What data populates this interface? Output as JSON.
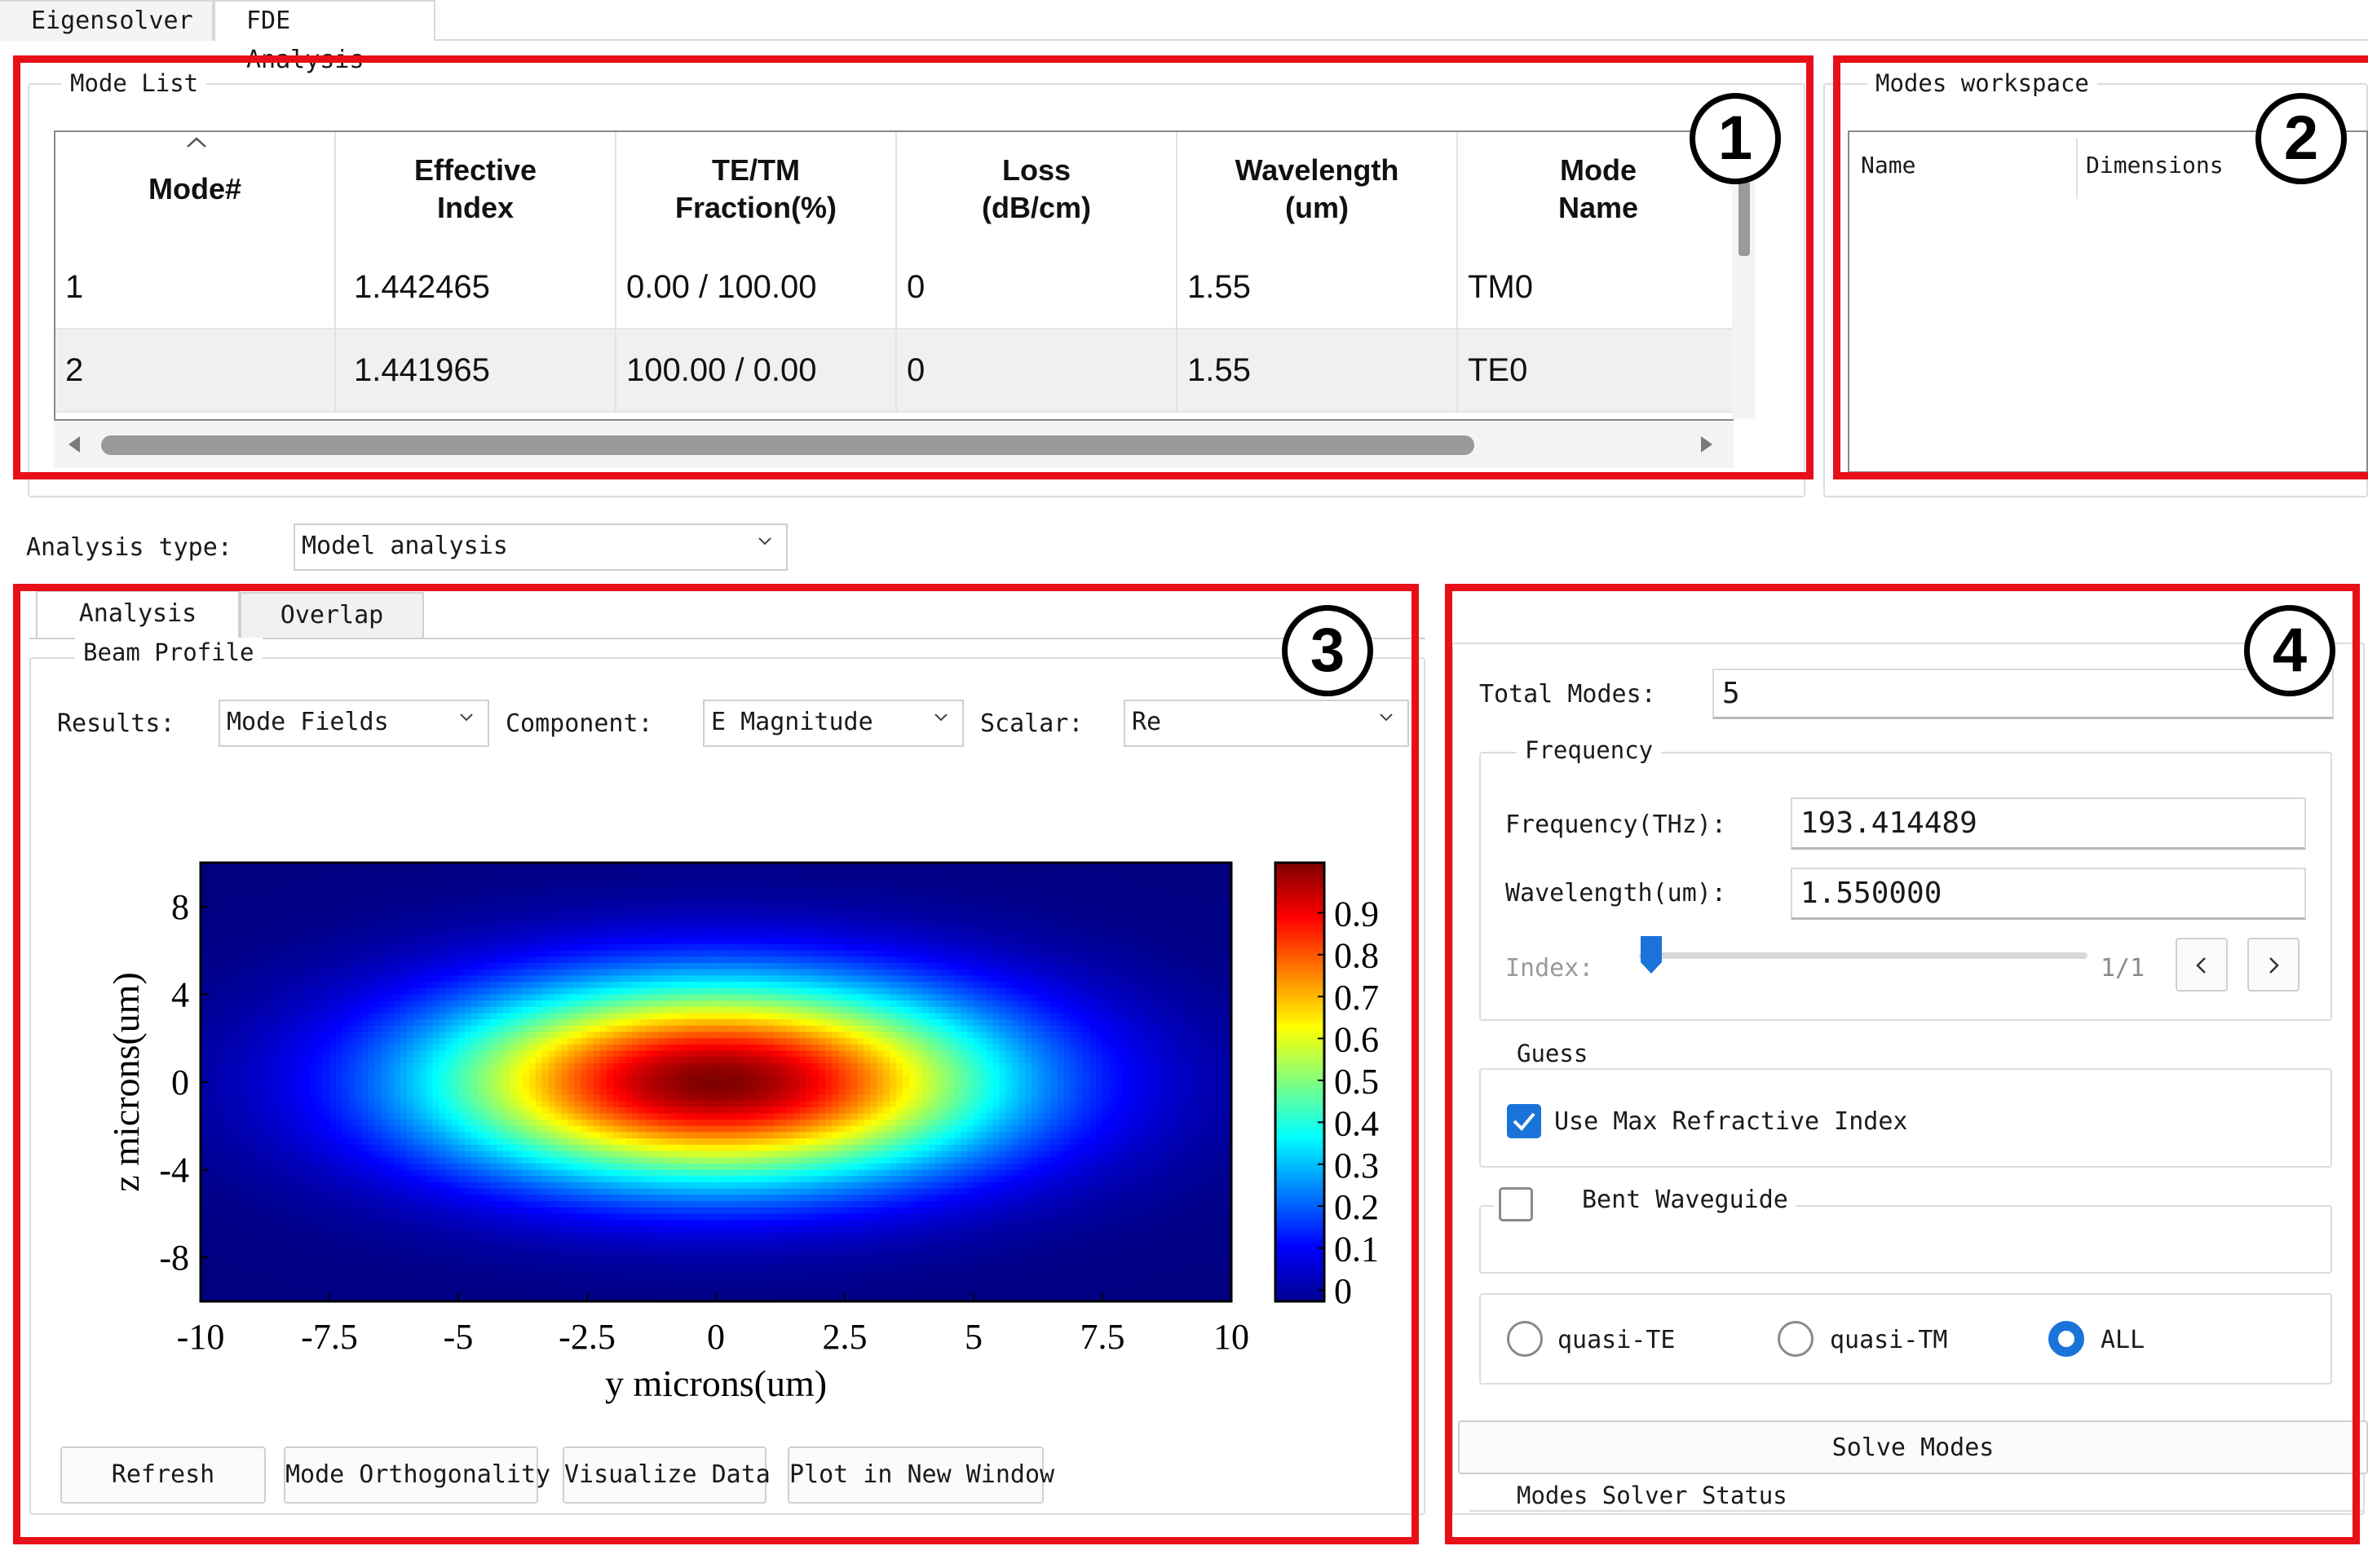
{
  "tabs": {
    "eigensolver": "Eigensolver",
    "fde_analysis": "FDE Analysis"
  },
  "mode_list": {
    "legend": "Mode List",
    "columns": [
      "Mode#",
      "Effective Index",
      "TE/TM Fraction(%)",
      "Loss (dB/cm)",
      "Wavelength (um)",
      "Mode Name"
    ],
    "rows": [
      {
        "mode": "1",
        "neff": "1.442465",
        "tetm": "0.00 / 100.00",
        "loss": "0",
        "wavelength": "1.55",
        "name": "TM0"
      },
      {
        "mode": "2",
        "neff": "1.441965",
        "tetm": "100.00 / 0.00",
        "loss": "0",
        "wavelength": "1.55",
        "name": "TE0"
      }
    ]
  },
  "workspace": {
    "legend": "Modes workspace",
    "col_name": "Name",
    "col_dims": "Dimensions"
  },
  "analysis_type": {
    "label": "Analysis type:",
    "value": "Model analysis"
  },
  "analysis_tabs": {
    "analysis": "Analysis",
    "overlap": "Overlap"
  },
  "beam_profile": {
    "legend": "Beam Profile",
    "results_label": "Results:",
    "results_value": "Mode Fields",
    "component_label": "Component:",
    "component_value": "E Magnitude",
    "scalar_label": "Scalar:",
    "scalar_value": "Re"
  },
  "chart_data": {
    "type": "heatmap",
    "title": "",
    "xlabel": "y microns(um)",
    "ylabel": "z microns(um)",
    "xlim": [
      -10,
      10
    ],
    "ylim": [
      -10,
      10
    ],
    "xticks": [
      "-10",
      "-7.5",
      "-5",
      "-2.5",
      "0",
      "2.5",
      "5",
      "7.5",
      "10"
    ],
    "yticks": [
      "8",
      "4",
      "0",
      "-4",
      "-8"
    ],
    "colorbar": {
      "min": 0,
      "max": 1,
      "ticks": [
        "0.9",
        "0.8",
        "0.7",
        "0.6",
        "0.5",
        "0.4",
        "0.3",
        "0.2",
        "0.1",
        "0"
      ],
      "colormap": "jet"
    },
    "field": {
      "shape": "gaussian-ellipse",
      "center": [
        0,
        0
      ],
      "peak": 1.0,
      "width_y_um": 5.5,
      "width_z_um": 4.5
    }
  },
  "buttons": {
    "refresh": "Refresh",
    "mode_orthogonality": "Mode Orthogonality",
    "visualize_data": "Visualize Data",
    "plot_new_window": "Plot in New Window"
  },
  "solver": {
    "total_modes_label": "Total Modes:",
    "total_modes_value": "5",
    "frequency_legend": "Frequency",
    "frequency_label": "Frequency(THz):",
    "frequency_value": "193.414489",
    "wavelength_label": "Wavelength(um):",
    "wavelength_value": "1.550000",
    "index_label": "Index:",
    "index_value": "1/1",
    "index_fraction": 0.0,
    "guess_legend": "Guess",
    "use_max_ri": "Use Max Refractive Index",
    "use_max_ri_checked": true,
    "bent_waveguide": "Bent Waveguide",
    "bent_checked": false,
    "radio_quasi_te": "quasi-TE",
    "radio_quasi_tm": "quasi-TM",
    "radio_all": "ALL",
    "selected_radio": "ALL",
    "solve_button": "Solve Modes",
    "status_legend": "Modes Solver Status"
  },
  "annotations": [
    "1",
    "2",
    "3",
    "4"
  ],
  "colors": {
    "annotation_red": "#e81018",
    "accent_blue": "#1a73d8"
  }
}
